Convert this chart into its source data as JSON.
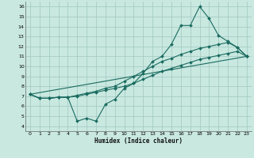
{
  "xlabel": "Humidex (Indice chaleur)",
  "xlim": [
    -0.5,
    23.5
  ],
  "ylim": [
    3.5,
    16.5
  ],
  "xticks": [
    0,
    1,
    2,
    3,
    4,
    5,
    6,
    7,
    8,
    9,
    10,
    11,
    12,
    13,
    14,
    15,
    16,
    17,
    18,
    19,
    20,
    21,
    22,
    23
  ],
  "yticks": [
    4,
    5,
    6,
    7,
    8,
    9,
    10,
    11,
    12,
    13,
    14,
    15,
    16
  ],
  "background_color": "#c8e8e0",
  "grid_color": "#a0c8c0",
  "line_color": "#1a6b60",
  "line1_x": [
    0,
    1,
    2,
    3,
    4,
    5,
    6,
    7,
    8,
    9,
    10,
    11,
    12,
    13,
    14,
    15,
    16,
    17,
    18,
    19,
    20,
    21,
    22,
    23
  ],
  "line1_y": [
    7.2,
    6.8,
    6.8,
    6.9,
    6.9,
    4.5,
    4.8,
    4.5,
    6.2,
    6.7,
    7.8,
    8.3,
    9.3,
    10.5,
    11.0,
    12.2,
    14.1,
    14.1,
    16.0,
    14.8,
    13.1,
    12.5,
    11.9,
    11.0
  ],
  "line2_x": [
    0,
    1,
    2,
    3,
    4,
    5,
    6,
    7,
    8,
    9,
    10,
    11,
    12,
    13,
    14,
    15,
    16,
    17,
    18,
    19,
    20,
    21,
    22,
    23
  ],
  "line2_y": [
    7.2,
    6.8,
    6.8,
    6.9,
    6.9,
    7.1,
    7.3,
    7.5,
    7.8,
    8.0,
    8.5,
    9.0,
    9.5,
    10.0,
    10.5,
    10.8,
    11.2,
    11.5,
    11.8,
    12.0,
    12.2,
    12.4,
    11.9,
    11.0
  ],
  "line3_x": [
    0,
    23
  ],
  "line3_y": [
    7.2,
    11.0
  ],
  "line4_x": [
    0,
    1,
    2,
    3,
    4,
    5,
    6,
    7,
    8,
    9,
    10,
    11,
    12,
    13,
    14,
    15,
    16,
    17,
    18,
    19,
    20,
    21,
    22,
    23
  ],
  "line4_y": [
    7.2,
    6.8,
    6.8,
    6.9,
    6.9,
    7.0,
    7.2,
    7.4,
    7.6,
    7.8,
    8.0,
    8.3,
    8.7,
    9.1,
    9.5,
    9.8,
    10.1,
    10.4,
    10.7,
    10.9,
    11.1,
    11.3,
    11.5,
    11.0
  ]
}
